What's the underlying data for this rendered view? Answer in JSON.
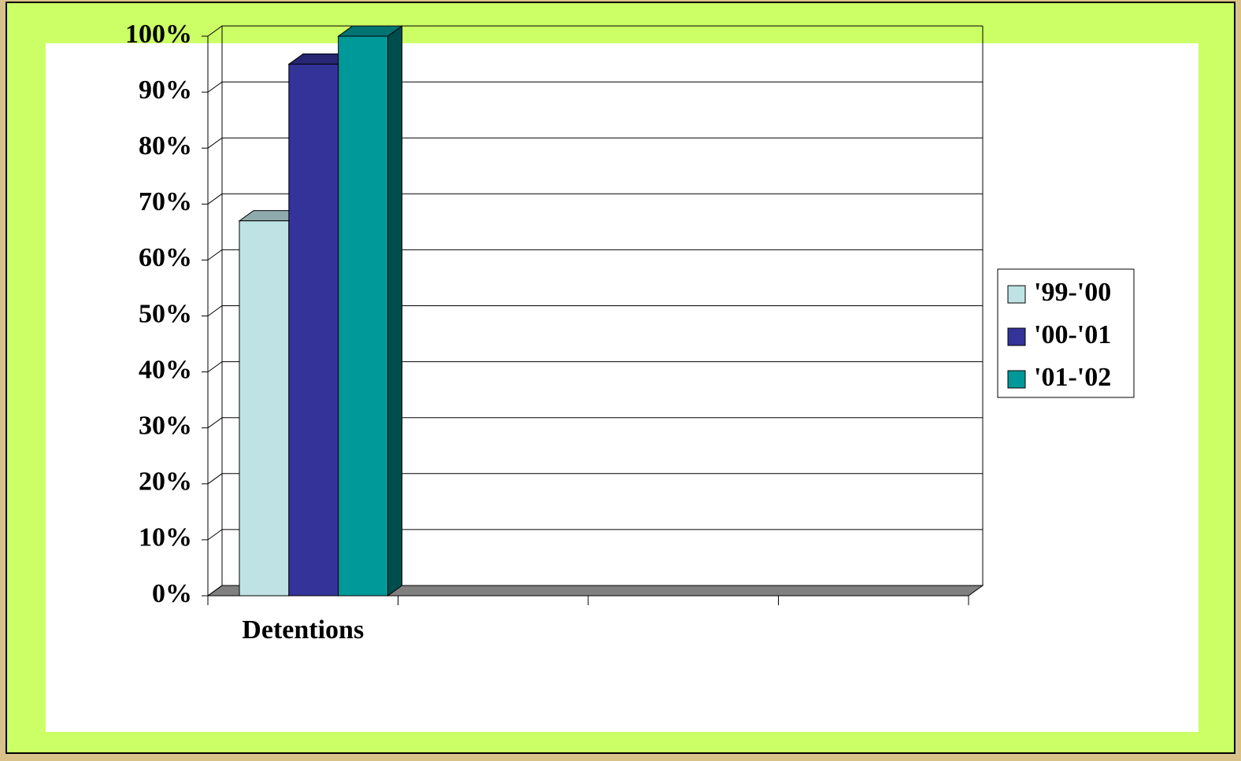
{
  "chart_data": {
    "type": "bar3d",
    "categories": [
      "Detentions",
      null,
      null,
      null
    ],
    "series": [
      {
        "name": "'99-'00",
        "color": "#bfe3e5",
        "values": [
          67,
          null,
          null,
          null
        ]
      },
      {
        "name": "'00-'01",
        "color": "#333399",
        "values": [
          95,
          null,
          null,
          null
        ]
      },
      {
        "name": "'01-'02",
        "color": "#009999",
        "values": [
          100,
          null,
          null,
          null
        ]
      }
    ],
    "ylim": [
      0,
      100
    ],
    "yticks": [
      {
        "value": 0,
        "label": "0%"
      },
      {
        "value": 10,
        "label": "10%"
      },
      {
        "value": 20,
        "label": "20%"
      },
      {
        "value": 30,
        "label": "30%"
      },
      {
        "value": 40,
        "label": "40%"
      },
      {
        "value": 50,
        "label": "50%"
      },
      {
        "value": 60,
        "label": "60%"
      },
      {
        "value": 70,
        "label": "70%"
      },
      {
        "value": 80,
        "label": "80%"
      },
      {
        "value": 90,
        "label": "90%"
      },
      {
        "value": 100,
        "label": "100%"
      }
    ],
    "grid": true,
    "legend": "right"
  }
}
